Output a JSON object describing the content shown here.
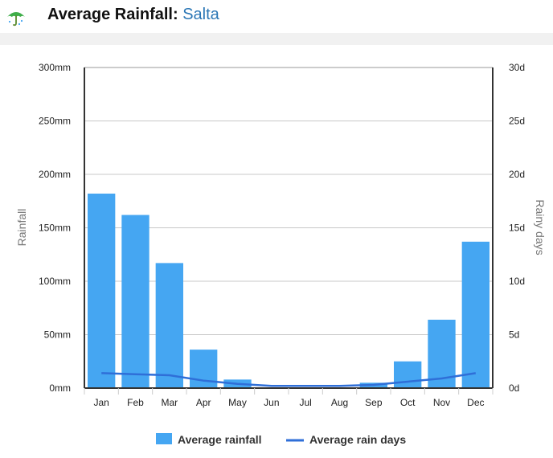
{
  "header": {
    "title_prefix": "Average Rainfall:",
    "location": "Salta",
    "icon": "umbrella-icon"
  },
  "colors": {
    "bar": "#45a6f2",
    "line": "#2f6fd8",
    "grid": "#c8c8c8",
    "location": "#2a76b5"
  },
  "chart_data": {
    "type": "bar",
    "title": "Average Rainfall: Salta",
    "categories": [
      "Jan",
      "Feb",
      "Mar",
      "Apr",
      "May",
      "Jun",
      "Jul",
      "Aug",
      "Sep",
      "Oct",
      "Nov",
      "Dec"
    ],
    "series": [
      {
        "name": "Average rainfall",
        "type": "bar",
        "axis": "left",
        "values": [
          182,
          162,
          117,
          36,
          8,
          0,
          0,
          0,
          5,
          25,
          64,
          137
        ]
      },
      {
        "name": "Average rain days",
        "type": "line",
        "axis": "right",
        "values": [
          1.4,
          1.3,
          1.2,
          0.7,
          0.4,
          0.2,
          0.2,
          0.2,
          0.3,
          0.6,
          0.9,
          1.4
        ]
      }
    ],
    "ylabel": "Rainfall",
    "y2label": "Rainy days",
    "ylim": [
      0,
      300
    ],
    "y2lim": [
      0,
      30
    ],
    "yticks": [
      "0mm",
      "50mm",
      "100mm",
      "150mm",
      "200mm",
      "250mm",
      "300mm"
    ],
    "y2ticks": [
      "0d",
      "5d",
      "10d",
      "15d",
      "20d",
      "25d",
      "30d"
    ],
    "legend": [
      "Average rainfall",
      "Average rain days"
    ],
    "legend_position": "bottom",
    "grid": true
  }
}
